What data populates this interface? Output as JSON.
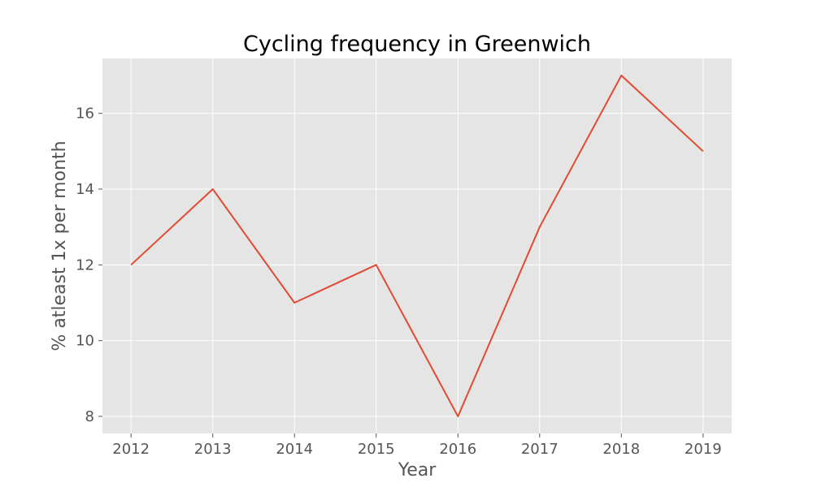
{
  "chart_data": {
    "type": "line",
    "title": "Cycling frequency in Greenwich",
    "xlabel": "Year",
    "ylabel": "% atleast 1x per month",
    "x": [
      2012,
      2013,
      2014,
      2015,
      2016,
      2017,
      2018,
      2019
    ],
    "series": [
      {
        "values": [
          12,
          14,
          11,
          12,
          8,
          13,
          17,
          15
        ]
      }
    ],
    "xticks": [
      "2012",
      "2013",
      "2014",
      "2015",
      "2016",
      "2017",
      "2018",
      "2019"
    ],
    "yticks": [
      8,
      10,
      12,
      14,
      16
    ],
    "xlim": [
      2011.65,
      2019.35
    ],
    "ylim": [
      7.55,
      17.45
    ],
    "grid": true,
    "colors": {
      "background": "#e5e5e5",
      "grid": "#ffffff",
      "line": "#e24a33",
      "tick": "#555555"
    }
  }
}
